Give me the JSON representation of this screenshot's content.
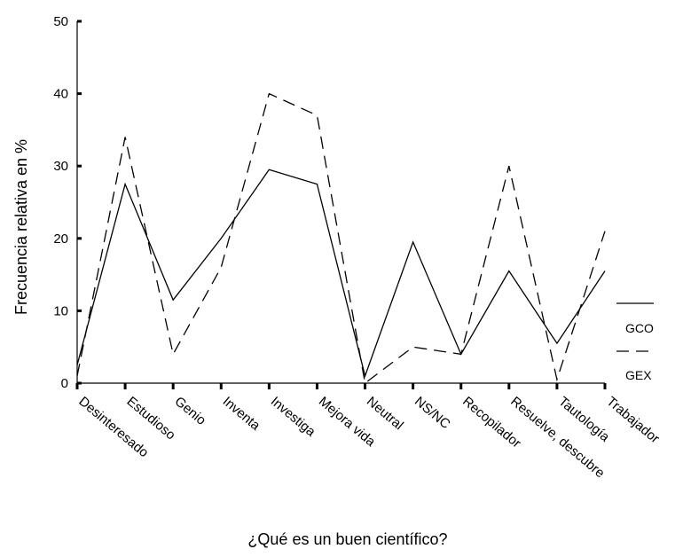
{
  "chart_data": {
    "type": "line",
    "title": "",
    "xlabel": "¿Qué es un buen científico?",
    "ylabel": "Frecuencia relativa en %",
    "ylim": [
      0,
      50
    ],
    "yticks": [
      0,
      10,
      20,
      30,
      40,
      50
    ],
    "grid": false,
    "legend_position": "right",
    "categories": [
      "Desinteresado",
      "Estudioso",
      "Genio",
      "Inventa",
      "Investiga",
      "Mejora vida",
      "Neutral",
      "NS/NC",
      "Recopilador",
      "Resuelve, descubre",
      "Tautología",
      "Trabajador"
    ],
    "series": [
      {
        "name": "GCO",
        "style": "solid",
        "values": [
          2.5,
          27.5,
          11.5,
          20,
          29.5,
          27.5,
          1,
          19.5,
          4,
          15.5,
          5.5,
          15.5
        ]
      },
      {
        "name": "GEX",
        "style": "dashed",
        "values": [
          1,
          34,
          4,
          16,
          40,
          37,
          0,
          5,
          4,
          30,
          0.5,
          21
        ]
      }
    ],
    "colors": {
      "lines": "#000000",
      "axis": "#000000",
      "background": "#ffffff"
    }
  }
}
